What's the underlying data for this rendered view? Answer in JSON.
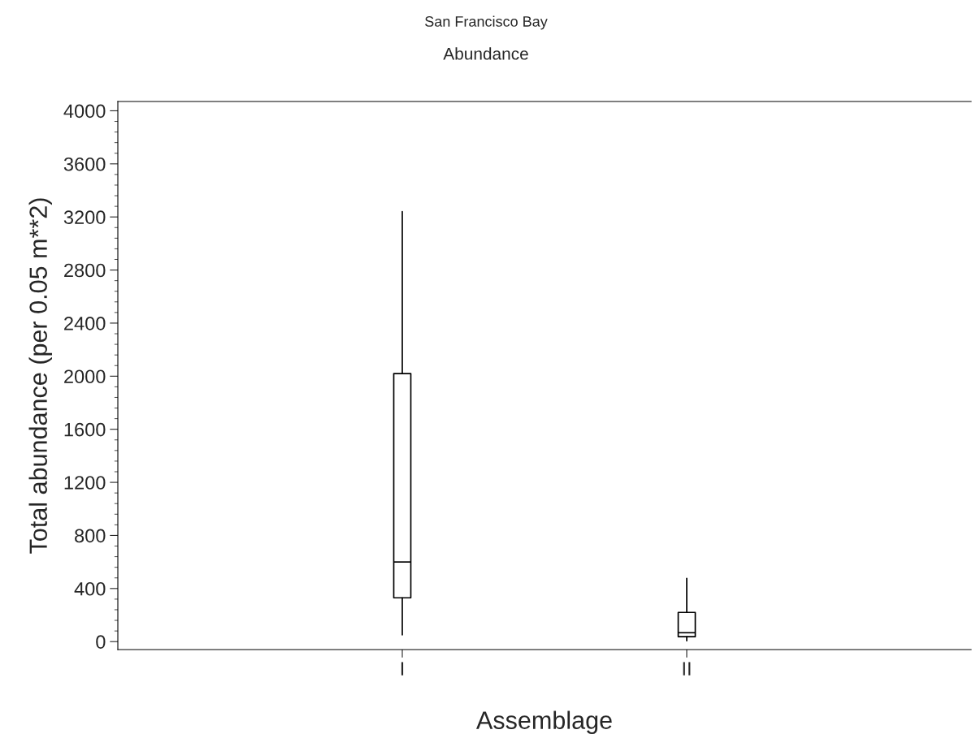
{
  "chart_data": {
    "type": "box",
    "title": "San Francisco Bay",
    "subtitle": "Abundance",
    "xlabel": "Assemblage",
    "ylabel": "Total abundance (per 0.05 m**2)",
    "categories": [
      "I",
      "II"
    ],
    "boxes": [
      {
        "low": 50,
        "q1": 330,
        "median": 600,
        "q3": 2020,
        "high": 3240
      },
      {
        "low": 6,
        "q1": 37,
        "median": 67,
        "q3": 220,
        "high": 476
      }
    ],
    "ylim": [
      -60,
      4070
    ],
    "yticks": [
      0,
      400,
      800,
      1200,
      1600,
      2000,
      2400,
      2800,
      3200,
      3600,
      4000
    ],
    "grid": false,
    "legend": false
  }
}
